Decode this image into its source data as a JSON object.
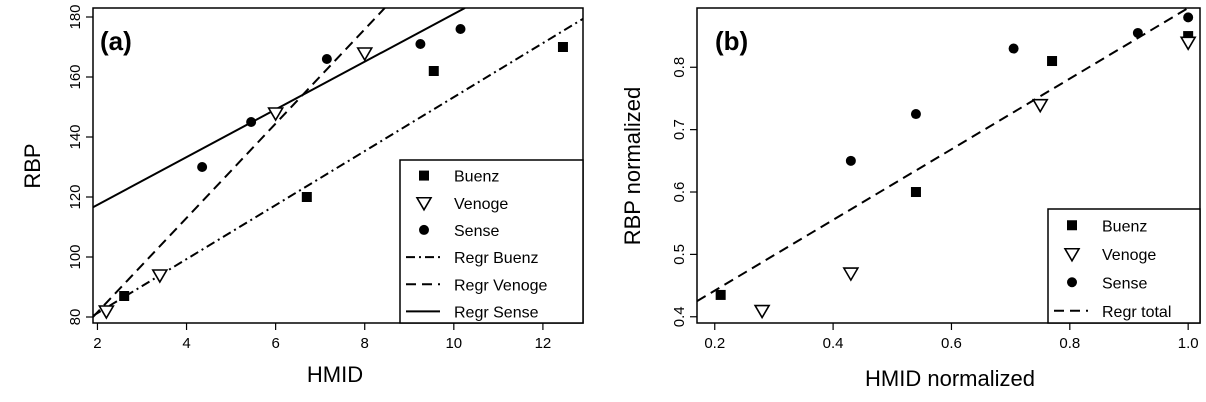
{
  "chart_data": [
    {
      "type": "scatter",
      "panel_label": "(a)",
      "xlabel": "HMID",
      "ylabel": "RBP",
      "xlim": [
        1.9,
        12.9
      ],
      "ylim": [
        78,
        183
      ],
      "x_ticks": [
        2,
        4,
        6,
        8,
        10,
        12
      ],
      "y_ticks": [
        80,
        100,
        120,
        140,
        160,
        180
      ],
      "grid": false,
      "legend_position": "bottom-right",
      "series": [
        {
          "name": "Buenz",
          "marker": "square",
          "points": [
            [
              2.6,
              87
            ],
            [
              6.7,
              120
            ],
            [
              9.55,
              162
            ],
            [
              12.45,
              170
            ]
          ]
        },
        {
          "name": "Venoge",
          "marker": "triangle-down",
          "points": [
            [
              2.2,
              82
            ],
            [
              3.4,
              94
            ],
            [
              6.0,
              148
            ],
            [
              8.0,
              168
            ]
          ]
        },
        {
          "name": "Sense",
          "marker": "circle",
          "points": [
            [
              4.35,
              130
            ],
            [
              5.45,
              145
            ],
            [
              7.15,
              166
            ],
            [
              9.25,
              171
            ],
            [
              10.15,
              176
            ]
          ]
        }
      ],
      "lines": [
        {
          "name": "Regr Buenz",
          "style": "dashdot",
          "from": [
            1.9,
            80.4
          ],
          "to": [
            12.9,
            179.4
          ]
        },
        {
          "name": "Regr Venoge",
          "style": "dashed",
          "from": [
            1.9,
            80.0
          ],
          "to": [
            8.45,
            183.0
          ]
        },
        {
          "name": "Regr Sense",
          "style": "solid",
          "from": [
            1.9,
            116.6
          ],
          "to": [
            10.25,
            183.0
          ]
        }
      ],
      "legend": [
        "Buenz",
        "Venoge",
        "Sense",
        "Regr Buenz",
        "Regr Venoge",
        "Regr Sense"
      ]
    },
    {
      "type": "scatter",
      "panel_label": "(b)",
      "xlabel": "HMID normalized",
      "ylabel": "RBP normalized",
      "xlim": [
        0.17,
        1.02
      ],
      "ylim": [
        0.39,
        0.895
      ],
      "x_ticks": [
        0.2,
        0.4,
        0.6,
        0.8,
        1.0
      ],
      "x_tick_labels": [
        "0.2",
        "0.4",
        "0.6",
        "0.8",
        "1.0"
      ],
      "y_ticks": [
        0.4,
        0.5,
        0.6,
        0.7,
        0.8
      ],
      "y_tick_labels": [
        "0.4",
        "0.5",
        "0.6",
        "0.7",
        "0.8"
      ],
      "grid": false,
      "legend_position": "bottom-right",
      "series": [
        {
          "name": "Buenz",
          "marker": "square",
          "points": [
            [
              0.21,
              0.435
            ],
            [
              0.54,
              0.6
            ],
            [
              0.77,
              0.81
            ],
            [
              1.0,
              0.85
            ]
          ]
        },
        {
          "name": "Venoge",
          "marker": "triangle-down",
          "points": [
            [
              0.28,
              0.41
            ],
            [
              0.43,
              0.47
            ],
            [
              0.75,
              0.74
            ],
            [
              1.0,
              0.84
            ]
          ]
        },
        {
          "name": "Sense",
          "marker": "circle",
          "points": [
            [
              0.43,
              0.65
            ],
            [
              0.54,
              0.725
            ],
            [
              0.705,
              0.83
            ],
            [
              0.915,
              0.855
            ],
            [
              1.0,
              0.88
            ]
          ]
        }
      ],
      "lines": [
        {
          "name": "Regr total",
          "style": "dashed",
          "from": [
            0.17,
            0.425
          ],
          "to": [
            1.0,
            0.895
          ]
        }
      ],
      "legend": [
        "Buenz",
        "Venoge",
        "Sense",
        "Regr total"
      ]
    }
  ]
}
